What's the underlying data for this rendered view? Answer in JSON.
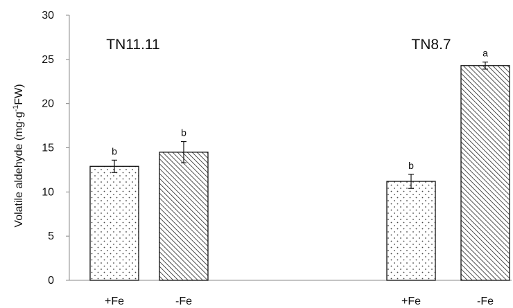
{
  "chart_data": {
    "type": "bar",
    "ylabel_main": "Volatile aldehyde (mg·g",
    "ylabel_sup": "-1",
    "ylabel_tail": "FW)",
    "ylim": [
      0,
      30
    ],
    "yticks": [
      "0",
      "5",
      "10",
      "15",
      "20",
      "25",
      "30"
    ],
    "grid": false,
    "groups": [
      {
        "label": "TN11.11",
        "bars": [
          {
            "category": "+Fe",
            "value": 12.9,
            "error": 0.7,
            "sig": "b",
            "pattern": "dots"
          },
          {
            "category": "-Fe",
            "value": 14.5,
            "error": 1.2,
            "sig": "b",
            "pattern": "hatch"
          }
        ]
      },
      {
        "label": "TN8.7",
        "bars": [
          {
            "category": "+Fe",
            "value": 11.2,
            "error": 0.8,
            "sig": "b",
            "pattern": "dots"
          },
          {
            "category": "-Fe",
            "value": 24.3,
            "error": 0.4,
            "sig": "a",
            "pattern": "hatch"
          }
        ]
      }
    ]
  }
}
